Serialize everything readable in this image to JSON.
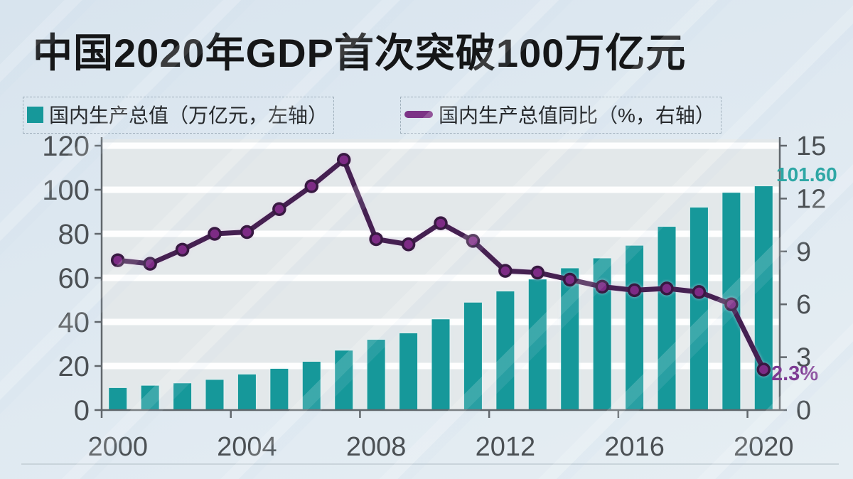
{
  "title": "中国2020年GDP首次突破100万亿元",
  "legend": {
    "items": [
      {
        "label": "国内生产总值（万亿元，左轴）",
        "marker": "bar-square",
        "color": "#16989a"
      },
      {
        "label": "国内生产总值同比（%，右轴）",
        "marker": "line-capsule",
        "color": "#7c3386"
      }
    ]
  },
  "annotations": {
    "last_bar_value_label": "101.60",
    "last_point_value_label": "2.3%"
  },
  "colors": {
    "background": "#dde8ef",
    "plot_background": "#e3e8ea",
    "gridline": "#ffffff",
    "axis": "#61676c",
    "bar": "#16989a",
    "line": "#452051",
    "marker": "#7d2b85",
    "bar_label": "#2ea7a5",
    "line_label": "#7d3a93",
    "tick_text": "#4b5054",
    "title_text": "#151617"
  },
  "chart_data": {
    "type": "combo bar+line",
    "title": "中国2020年GDP首次突破100万亿元",
    "categories": [
      "2000",
      "2001",
      "2002",
      "2003",
      "2004",
      "2005",
      "2006",
      "2007",
      "2008",
      "2009",
      "2010",
      "2011",
      "2012",
      "2013",
      "2014",
      "2015",
      "2016",
      "2017",
      "2018",
      "2019",
      "2020"
    ],
    "series": [
      {
        "name": "国内生产总值（万亿元，左轴）",
        "type": "bar",
        "y_axis": "left",
        "color": "#16989a",
        "values": [
          10.03,
          11.09,
          12.17,
          13.74,
          16.18,
          18.73,
          21.94,
          27.01,
          31.92,
          34.85,
          41.21,
          48.79,
          53.86,
          59.3,
          64.36,
          68.89,
          74.64,
          83.2,
          91.93,
          98.65,
          101.6
        ]
      },
      {
        "name": "国内生产总值同比（%，右轴）",
        "type": "line",
        "y_axis": "right",
        "color": "#452051",
        "marker_color": "#7d2b85",
        "values": [
          8.5,
          8.3,
          9.1,
          10.0,
          10.1,
          11.4,
          12.7,
          14.2,
          9.7,
          9.4,
          10.6,
          9.6,
          7.9,
          7.8,
          7.4,
          7.0,
          6.8,
          6.9,
          6.7,
          6.0,
          2.3
        ]
      }
    ],
    "left_axis": {
      "unit": "万亿元",
      "range": [
        0,
        120
      ],
      "ticks": [
        0,
        20,
        40,
        60,
        80,
        100,
        120
      ]
    },
    "right_axis": {
      "unit": "%",
      "range": [
        0,
        15
      ],
      "ticks": [
        0,
        3,
        6,
        9,
        12,
        15
      ]
    },
    "x_axis": {
      "tick_labels": [
        "2000",
        "2004",
        "2008",
        "2012",
        "2016",
        "2020"
      ],
      "label_interval": 4
    },
    "grid": {
      "horizontal": true,
      "vertical": false
    },
    "legend_position": "top",
    "data_labels": {
      "last_bar": "101.60",
      "last_point": "2.3%"
    }
  }
}
